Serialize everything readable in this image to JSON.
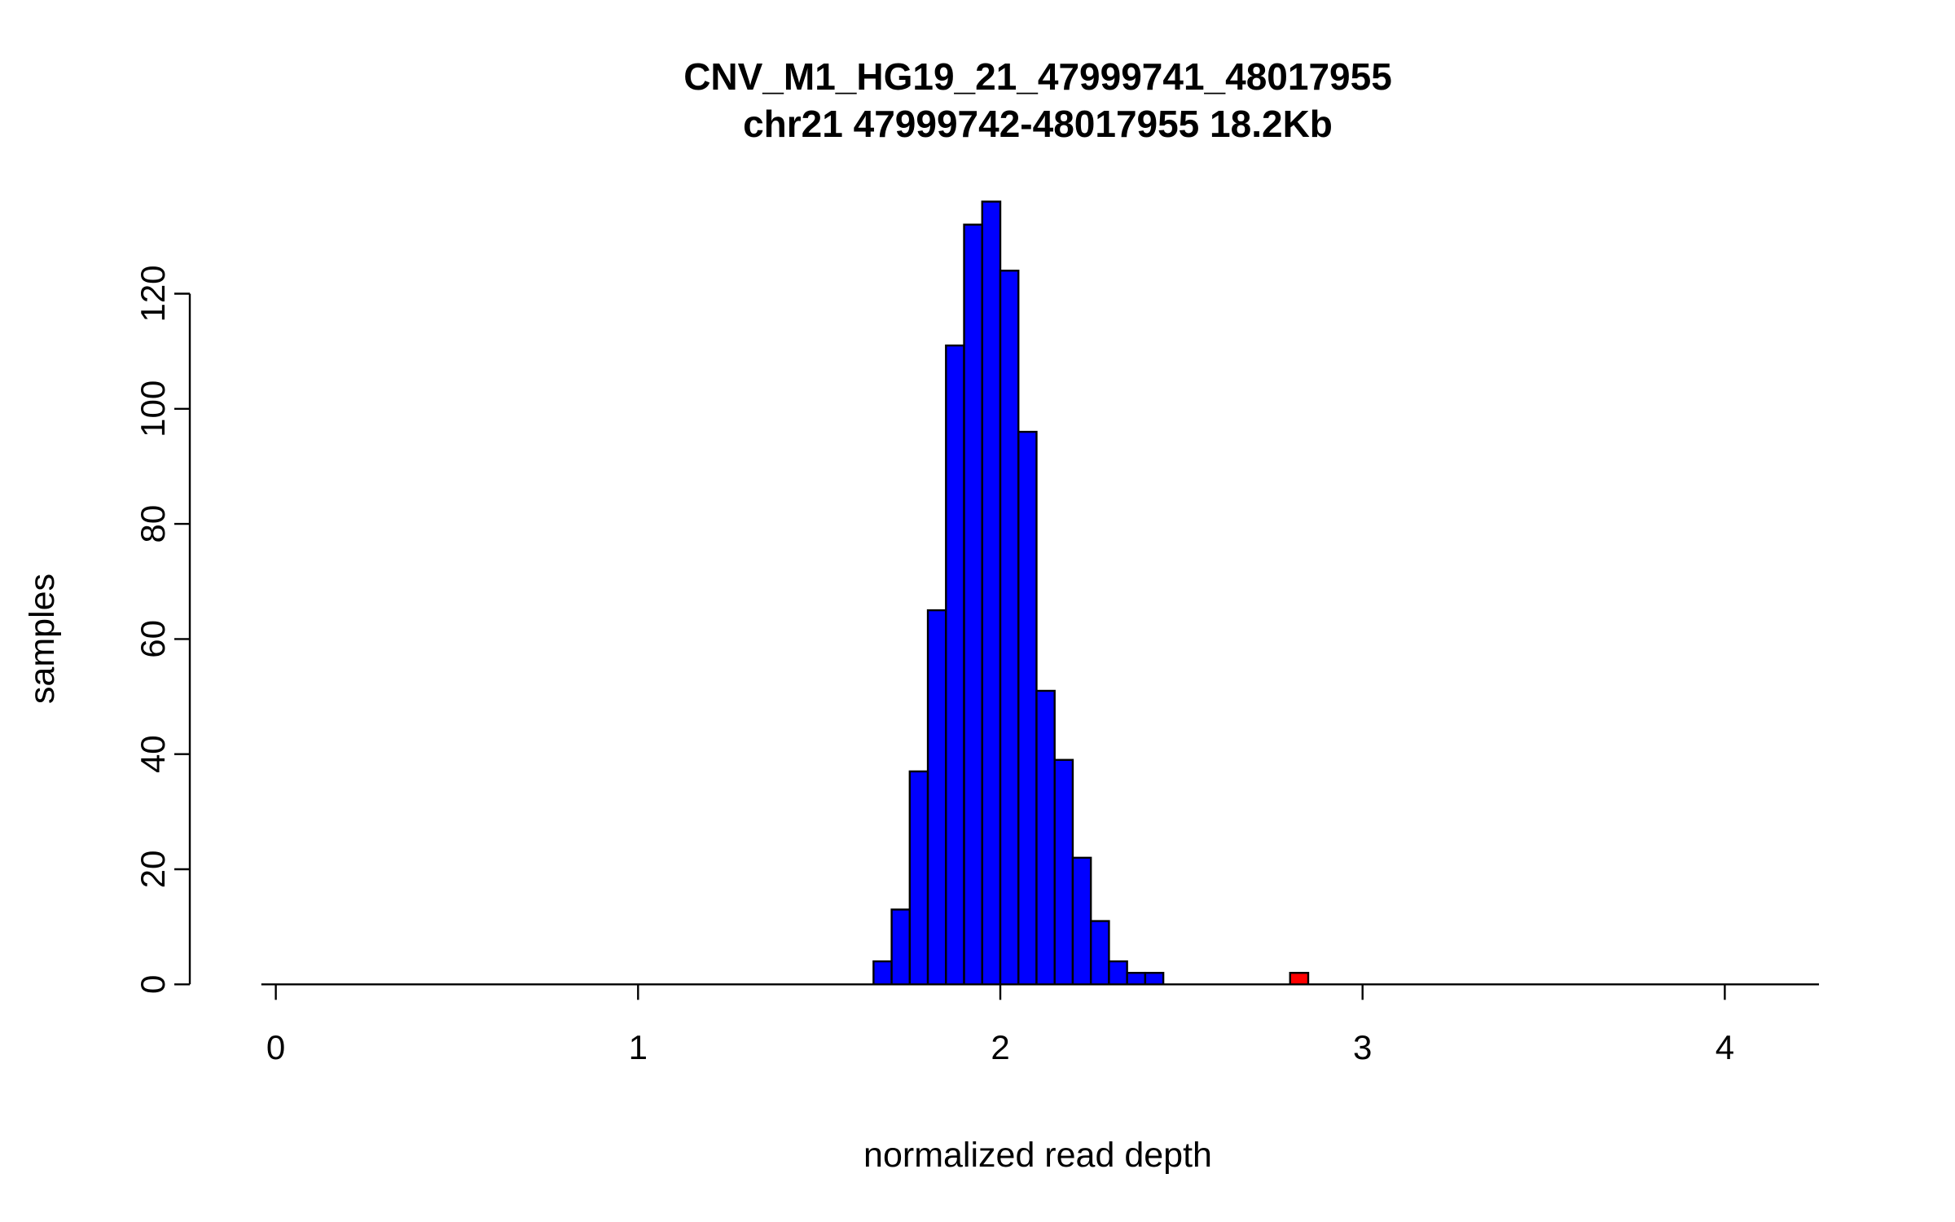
{
  "figure": {
    "background": "#ffffff"
  },
  "chart_data": {
    "type": "bar",
    "chart_kind": "histogram",
    "title": "CNV_M1_HG19_21_47999741_48017955",
    "subtitle": "chr21 47999742-48017955 18.2Kb",
    "xlabel": "normalized read depth",
    "ylabel": "samples",
    "x_ticks": [
      0,
      1,
      2,
      3,
      4
    ],
    "y_ticks": [
      0,
      20,
      40,
      60,
      80,
      100,
      120
    ],
    "xlim": [
      -0.04,
      4.26
    ],
    "ylim": [
      0,
      136
    ],
    "bin_width": 0.05,
    "bars_color": "#0000ff",
    "bar_stroke": "#000000",
    "axis_color": "#000000",
    "legend": "none",
    "grid": false,
    "bins": [
      {
        "x0": 1.65,
        "count": 4
      },
      {
        "x0": 1.7,
        "count": 13
      },
      {
        "x0": 1.75,
        "count": 37
      },
      {
        "x0": 1.8,
        "count": 65
      },
      {
        "x0": 1.85,
        "count": 111
      },
      {
        "x0": 1.9,
        "count": 132
      },
      {
        "x0": 1.95,
        "count": 136
      },
      {
        "x0": 2.0,
        "count": 124
      },
      {
        "x0": 2.05,
        "count": 96
      },
      {
        "x0": 2.1,
        "count": 51
      },
      {
        "x0": 2.15,
        "count": 39
      },
      {
        "x0": 2.2,
        "count": 22
      },
      {
        "x0": 2.25,
        "count": 11
      },
      {
        "x0": 2.3,
        "count": 4
      },
      {
        "x0": 2.35,
        "count": 2
      },
      {
        "x0": 2.4,
        "count": 2
      }
    ],
    "highlight_bins": [
      {
        "x0": 2.8,
        "count": 2,
        "color": "#ff0000"
      }
    ]
  }
}
